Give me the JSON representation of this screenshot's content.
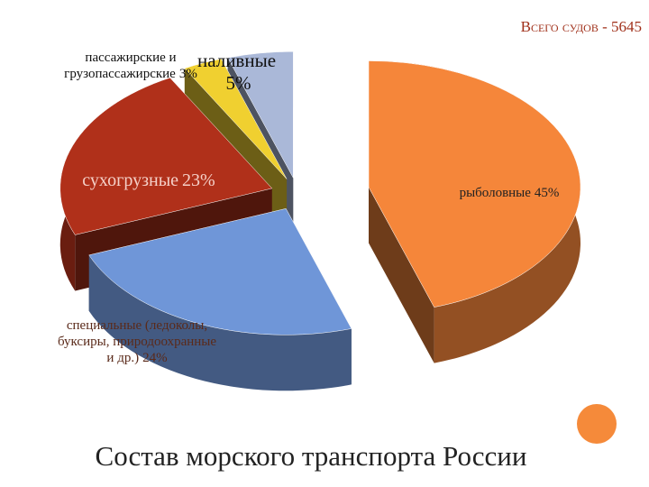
{
  "chart_data": {
    "type": "pie3d",
    "title": "Состав морского транспорта России",
    "subtitle": "Всего судов - 5645",
    "categories": [
      "рыболовные",
      "специальные (ледоколы, буксиры, природоохранные и др.)",
      "сухогрузные",
      "пассажирские и грузопассажирские",
      "наливные"
    ],
    "values": [
      45,
      24,
      23,
      3,
      5
    ],
    "value_labels": [
      "45%",
      "24%",
      "23%",
      "3%",
      "5%"
    ],
    "colors": [
      "#f5863a",
      "#6f96d8",
      "#b0301a",
      "#f0d030",
      "#aab8d8"
    ]
  }
}
